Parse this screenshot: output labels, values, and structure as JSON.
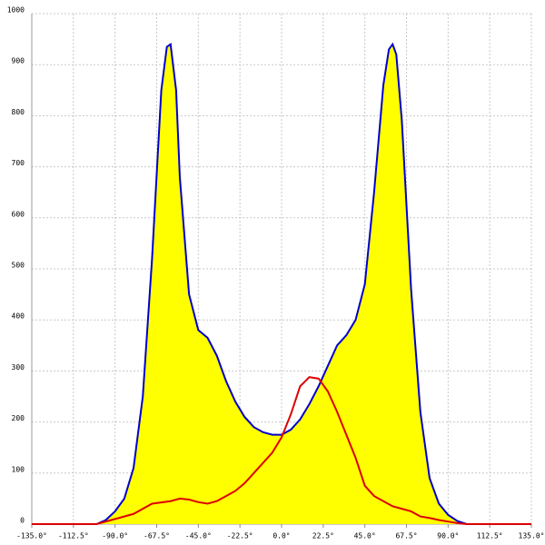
{
  "chart_data": {
    "type": "line",
    "xlim": [
      -135,
      135
    ],
    "ylim": [
      0,
      1000
    ],
    "xticks": [
      {
        "value": -135,
        "label": "-135.0°"
      },
      {
        "value": -112.5,
        "label": "-112.5°"
      },
      {
        "value": -90,
        "label": "-90.0°"
      },
      {
        "value": -67.5,
        "label": "-67.5°"
      },
      {
        "value": -45,
        "label": "-45.0°"
      },
      {
        "value": -22.5,
        "label": "-22.5°"
      },
      {
        "value": 0,
        "label": "0.0°"
      },
      {
        "value": 22.5,
        "label": "22.5°"
      },
      {
        "value": 45,
        "label": "45.0°"
      },
      {
        "value": 67.5,
        "label": "67.5°"
      },
      {
        "value": 90,
        "label": "90.0°"
      },
      {
        "value": 112.5,
        "label": "112.5°"
      },
      {
        "value": 135,
        "label": "135.0°"
      }
    ],
    "yticks": [
      0,
      100,
      200,
      300,
      400,
      500,
      600,
      700,
      800,
      900,
      1000
    ],
    "grid": true,
    "series": [
      {
        "color": "#0000cc",
        "fill": "#ffff00",
        "x": [
          -100,
          -95,
          -90,
          -85,
          -80,
          -75,
          -70,
          -65,
          -62,
          -60,
          -57,
          -55,
          -50,
          -45,
          -40,
          -35,
          -30,
          -25,
          -20,
          -15,
          -10,
          -5,
          0,
          5,
          10,
          15,
          20,
          25,
          30,
          35,
          40,
          45,
          50,
          55,
          58,
          60,
          62,
          65,
          70,
          75,
          80,
          85,
          90,
          95,
          100
        ],
        "values": [
          0,
          8,
          25,
          50,
          110,
          250,
          520,
          850,
          935,
          940,
          850,
          680,
          450,
          380,
          365,
          330,
          280,
          240,
          210,
          190,
          180,
          175,
          175,
          185,
          205,
          235,
          270,
          310,
          350,
          370,
          400,
          470,
          650,
          860,
          930,
          940,
          920,
          790,
          460,
          220,
          90,
          40,
          18,
          6,
          0
        ]
      },
      {
        "color": "#dd0000",
        "x": [
          -135,
          -100,
          -90,
          -80,
          -70,
          -60,
          -55,
          -50,
          -45,
          -40,
          -35,
          -30,
          -25,
          -20,
          -15,
          -10,
          -5,
          0,
          5,
          10,
          15,
          20,
          25,
          30,
          35,
          40,
          45,
          50,
          55,
          60,
          65,
          70,
          75,
          80,
          85,
          90,
          95,
          100,
          135
        ],
        "values": [
          0,
          0,
          10,
          20,
          40,
          45,
          50,
          48,
          43,
          40,
          45,
          55,
          65,
          80,
          100,
          120,
          140,
          170,
          215,
          270,
          288,
          285,
          260,
          220,
          175,
          130,
          75,
          55,
          45,
          35,
          30,
          25,
          15,
          12,
          8,
          5,
          2,
          0,
          0
        ]
      }
    ]
  }
}
